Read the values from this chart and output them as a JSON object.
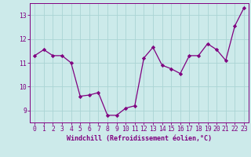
{
  "x": [
    0,
    1,
    2,
    3,
    4,
    5,
    6,
    7,
    8,
    9,
    10,
    11,
    12,
    13,
    14,
    15,
    16,
    17,
    18,
    19,
    20,
    21,
    22,
    23
  ],
  "y": [
    11.3,
    11.55,
    11.3,
    11.3,
    11.0,
    9.6,
    9.65,
    9.75,
    8.8,
    8.8,
    9.1,
    9.2,
    11.2,
    11.65,
    10.9,
    10.75,
    10.55,
    11.3,
    11.3,
    11.8,
    11.55,
    11.1,
    12.55,
    13.3
  ],
  "line_color": "#800080",
  "marker": "D",
  "marker_size": 2.2,
  "bg_color": "#cceaea",
  "grid_color": "#aad4d4",
  "xlabel": "Windchill (Refroidissement éolien,°C)",
  "ylim": [
    8.5,
    13.5
  ],
  "xlim": [
    -0.5,
    23.5
  ],
  "yticks": [
    9,
    10,
    11,
    12,
    13
  ],
  "xticks": [
    0,
    1,
    2,
    3,
    4,
    5,
    6,
    7,
    8,
    9,
    10,
    11,
    12,
    13,
    14,
    15,
    16,
    17,
    18,
    19,
    20,
    21,
    22,
    23
  ],
  "label_fontsize": 6.0,
  "tick_fontsize": 5.8
}
